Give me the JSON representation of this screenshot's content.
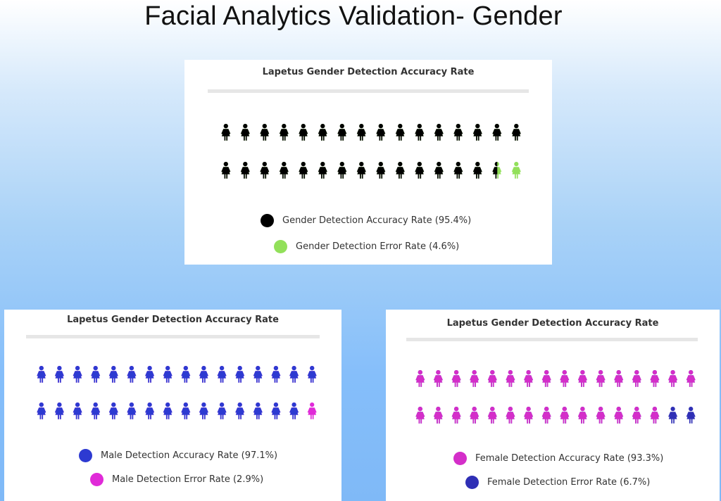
{
  "page": {
    "title": "Facial Analytics Validation- Gender"
  },
  "chart_data": [
    {
      "type": "pictogram",
      "title": "Lapetus Gender Detection Accuracy Rate",
      "icon": "person-female-icon",
      "icon_count": 32,
      "series": [
        {
          "name": "Gender Detection Accuracy Rate (95.4%)",
          "value": 95.4,
          "color": "#000000"
        },
        {
          "name": "Gender Detection Error Rate (4.6%)",
          "value": 4.6,
          "color": "#92e05a"
        }
      ]
    },
    {
      "type": "pictogram",
      "title": "Lapetus Gender Detection Accuracy Rate",
      "icon": "person-female-icon",
      "icon_count": 32,
      "series": [
        {
          "name": "Male Detection Accuracy Rate (97.1%)",
          "value": 97.1,
          "color": "#2d3ad1"
        },
        {
          "name": "Male Detection Error Rate (2.9%)",
          "value": 2.9,
          "color": "#e02ad8"
        }
      ]
    },
    {
      "type": "pictogram",
      "title": "Lapetus Gender Detection Accuracy Rate",
      "icon": "person-female-icon",
      "icon_count": 32,
      "series": [
        {
          "name": "Female Detection Accuracy Rate (93.3%)",
          "value": 93.3,
          "color": "#d42ec9"
        },
        {
          "name": "Female Detection Error Rate (6.7%)",
          "value": 6.7,
          "color": "#2f2fb5"
        }
      ]
    }
  ]
}
